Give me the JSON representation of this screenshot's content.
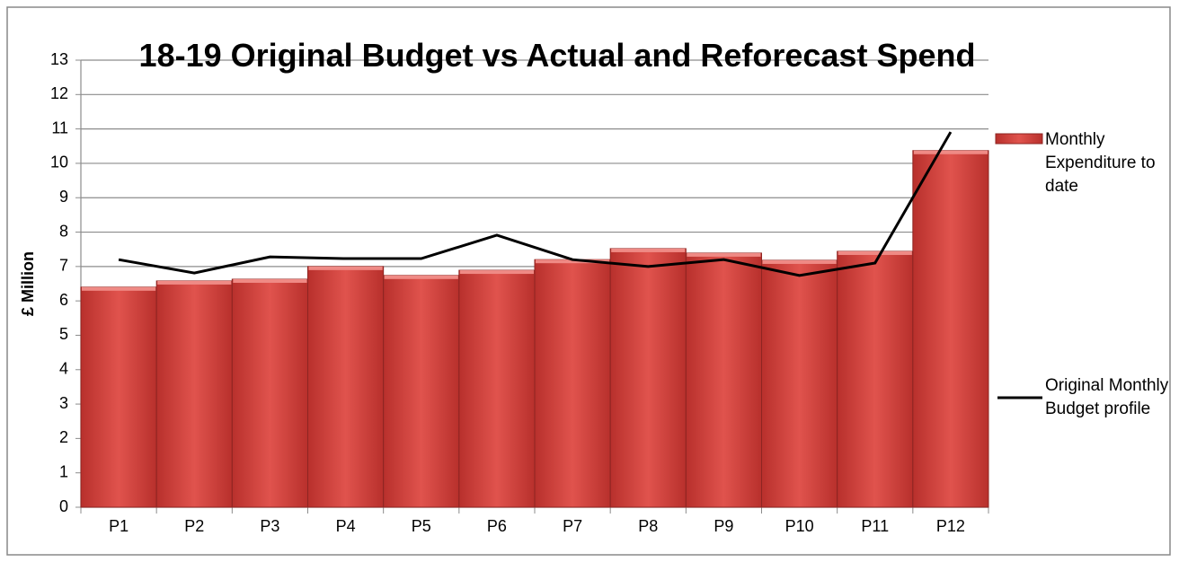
{
  "chart_data": {
    "type": "bar",
    "title": "18-19 Original Budget vs Actual and Reforecast Spend",
    "y_label": "£ Million",
    "categories": [
      "P1",
      "P2",
      "P3",
      "P4",
      "P5",
      "P6",
      "P7",
      "P8",
      "P9",
      "P10",
      "P11",
      "P12"
    ],
    "series": [
      {
        "name": "Monthly Expenditure to date",
        "type": "bar",
        "color": "#d9443f",
        "values": [
          6.4,
          6.58,
          6.63,
          7.0,
          6.74,
          6.89,
          7.2,
          7.52,
          7.39,
          7.18,
          7.44,
          10.37
        ]
      },
      {
        "name": "Original Monthly Budget profile",
        "type": "line",
        "color": "#000000",
        "values": [
          7.2,
          6.81,
          7.28,
          7.23,
          7.23,
          7.91,
          7.2,
          7.0,
          7.2,
          6.74,
          7.1,
          10.91
        ]
      }
    ],
    "ylim": [
      0,
      13
    ],
    "yticks": [
      0,
      1,
      2,
      3,
      4,
      5,
      6,
      7,
      8,
      9,
      10,
      11,
      12,
      13
    ],
    "grid": true
  }
}
